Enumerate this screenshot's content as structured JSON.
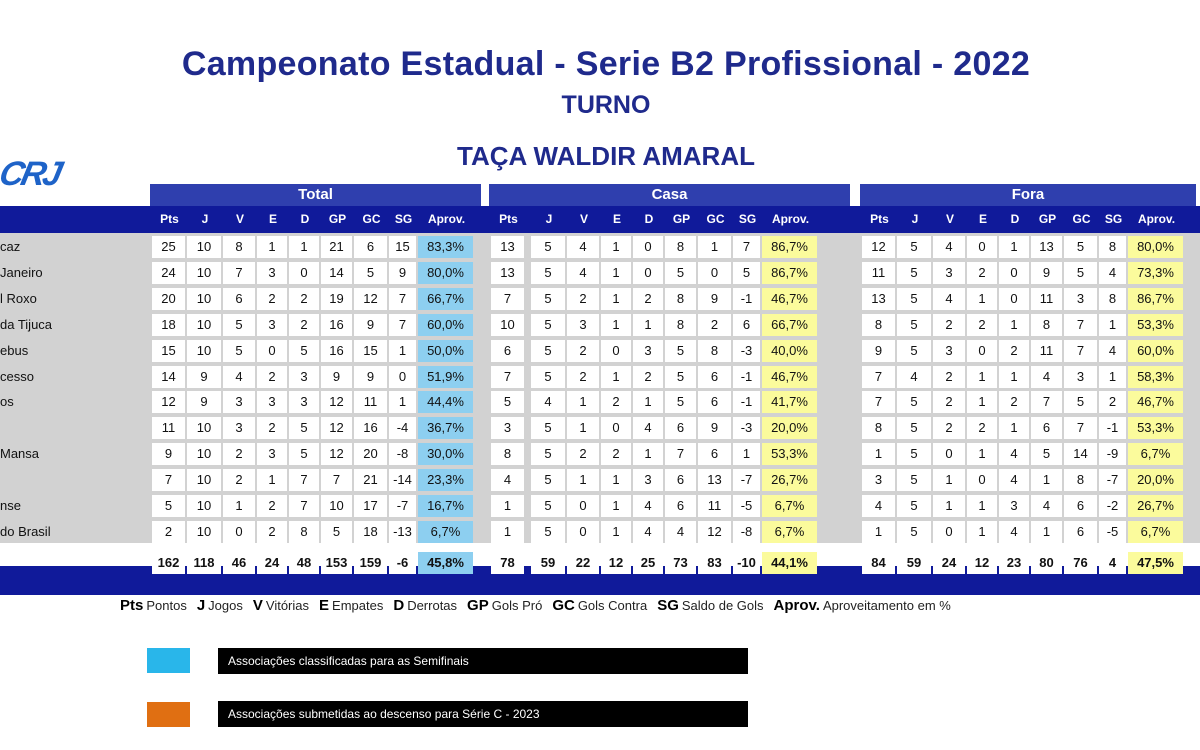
{
  "title": "Campeonato Estadual - Serie B2 Profissional - 2022",
  "subtitle": "TURNO",
  "cup": "TAÇA WALDIR AMARAL",
  "logo_text": "FERJ",
  "sections": [
    "Total",
    "Casa",
    "Fora"
  ],
  "columns": {
    "total": [
      "Pts",
      "J",
      "V",
      "E",
      "D",
      "GP",
      "GC",
      "SG",
      "Aprov."
    ],
    "casa": [
      "Pts",
      "J",
      "V",
      "E",
      "D",
      "GP",
      "GC",
      "SG",
      "Aprov."
    ],
    "fora": [
      "Pts",
      "J",
      "V",
      "E",
      "D",
      "GP",
      "GC",
      "SG",
      "Aprov."
    ]
  },
  "rows": [
    {
      "team": "caz",
      "total": [
        "25",
        "10",
        "8",
        "1",
        "1",
        "21",
        "6",
        "15",
        "83,3%"
      ],
      "casa": [
        "13",
        "5",
        "4",
        "1",
        "0",
        "8",
        "1",
        "7",
        "86,7%"
      ],
      "fora": [
        "12",
        "5",
        "4",
        "0",
        "1",
        "13",
        "5",
        "8",
        "80,0%"
      ]
    },
    {
      "team": "Janeiro",
      "total": [
        "24",
        "10",
        "7",
        "3",
        "0",
        "14",
        "5",
        "9",
        "80,0%"
      ],
      "casa": [
        "13",
        "5",
        "4",
        "1",
        "0",
        "5",
        "0",
        "5",
        "86,7%"
      ],
      "fora": [
        "11",
        "5",
        "3",
        "2",
        "0",
        "9",
        "5",
        "4",
        "73,3%"
      ]
    },
    {
      "team": "l Roxo",
      "total": [
        "20",
        "10",
        "6",
        "2",
        "2",
        "19",
        "12",
        "7",
        "66,7%"
      ],
      "casa": [
        "7",
        "5",
        "2",
        "1",
        "2",
        "8",
        "9",
        "-1",
        "46,7%"
      ],
      "fora": [
        "13",
        "5",
        "4",
        "1",
        "0",
        "11",
        "3",
        "8",
        "86,7%"
      ]
    },
    {
      "team": "da Tijuca",
      "total": [
        "18",
        "10",
        "5",
        "3",
        "2",
        "16",
        "9",
        "7",
        "60,0%"
      ],
      "casa": [
        "10",
        "5",
        "3",
        "1",
        "1",
        "8",
        "2",
        "6",
        "66,7%"
      ],
      "fora": [
        "8",
        "5",
        "2",
        "2",
        "1",
        "8",
        "7",
        "1",
        "53,3%"
      ]
    },
    {
      "team": "ebus",
      "total": [
        "15",
        "10",
        "5",
        "0",
        "5",
        "16",
        "15",
        "1",
        "50,0%"
      ],
      "casa": [
        "6",
        "5",
        "2",
        "0",
        "3",
        "5",
        "8",
        "-3",
        "40,0%"
      ],
      "fora": [
        "9",
        "5",
        "3",
        "0",
        "2",
        "11",
        "7",
        "4",
        "60,0%"
      ]
    },
    {
      "team": "cesso",
      "total": [
        "14",
        "9",
        "4",
        "2",
        "3",
        "9",
        "9",
        "0",
        "51,9%"
      ],
      "casa": [
        "7",
        "5",
        "2",
        "1",
        "2",
        "5",
        "6",
        "-1",
        "46,7%"
      ],
      "fora": [
        "7",
        "4",
        "2",
        "1",
        "1",
        "4",
        "3",
        "1",
        "58,3%"
      ]
    },
    {
      "team": "os",
      "total": [
        "12",
        "9",
        "3",
        "3",
        "3",
        "12",
        "11",
        "1",
        "44,4%"
      ],
      "casa": [
        "5",
        "4",
        "1",
        "2",
        "1",
        "5",
        "6",
        "-1",
        "41,7%"
      ],
      "fora": [
        "7",
        "5",
        "2",
        "1",
        "2",
        "7",
        "5",
        "2",
        "46,7%"
      ]
    },
    {
      "team": "",
      "total": [
        "11",
        "10",
        "3",
        "2",
        "5",
        "12",
        "16",
        "-4",
        "36,7%"
      ],
      "casa": [
        "3",
        "5",
        "1",
        "0",
        "4",
        "6",
        "9",
        "-3",
        "20,0%"
      ],
      "fora": [
        "8",
        "5",
        "2",
        "2",
        "1",
        "6",
        "7",
        "-1",
        "53,3%"
      ]
    },
    {
      "team": "Mansa",
      "total": [
        "9",
        "10",
        "2",
        "3",
        "5",
        "12",
        "20",
        "-8",
        "30,0%"
      ],
      "casa": [
        "8",
        "5",
        "2",
        "2",
        "1",
        "7",
        "6",
        "1",
        "53,3%"
      ],
      "fora": [
        "1",
        "5",
        "0",
        "1",
        "4",
        "5",
        "14",
        "-9",
        "6,7%"
      ]
    },
    {
      "team": "",
      "total": [
        "7",
        "10",
        "2",
        "1",
        "7",
        "7",
        "21",
        "-14",
        "23,3%"
      ],
      "casa": [
        "4",
        "5",
        "1",
        "1",
        "3",
        "6",
        "13",
        "-7",
        "26,7%"
      ],
      "fora": [
        "3",
        "5",
        "1",
        "0",
        "4",
        "1",
        "8",
        "-7",
        "20,0%"
      ]
    },
    {
      "team": "nse",
      "total": [
        "5",
        "10",
        "1",
        "2",
        "7",
        "10",
        "17",
        "-7",
        "16,7%"
      ],
      "casa": [
        "1",
        "5",
        "0",
        "1",
        "4",
        "6",
        "11",
        "-5",
        "6,7%"
      ],
      "fora": [
        "4",
        "5",
        "1",
        "1",
        "3",
        "4",
        "6",
        "-2",
        "26,7%"
      ]
    },
    {
      "team": "do Brasil",
      "total": [
        "2",
        "10",
        "0",
        "2",
        "8",
        "5",
        "18",
        "-13",
        "6,7%"
      ],
      "casa": [
        "1",
        "5",
        "0",
        "1",
        "4",
        "4",
        "12",
        "-8",
        "6,7%"
      ],
      "fora": [
        "1",
        "5",
        "0",
        "1",
        "4",
        "1",
        "6",
        "-5",
        "6,7%"
      ]
    }
  ],
  "totals": {
    "total": [
      "162",
      "118",
      "46",
      "24",
      "48",
      "153",
      "159",
      "-6",
      "45,8%"
    ],
    "casa": [
      "78",
      "59",
      "22",
      "12",
      "25",
      "73",
      "83",
      "-10",
      "44,1%"
    ],
    "fora": [
      "84",
      "59",
      "24",
      "12",
      "23",
      "80",
      "76",
      "4",
      "47,5%"
    ]
  },
  "legend": [
    {
      "abbr": "Pts",
      "text": "Pontos"
    },
    {
      "abbr": "J",
      "text": "Jogos"
    },
    {
      "abbr": "V",
      "text": "Vitórias"
    },
    {
      "abbr": "E",
      "text": "Empates"
    },
    {
      "abbr": "D",
      "text": "Derrotas"
    },
    {
      "abbr": "GP",
      "text": "Gols Pró"
    },
    {
      "abbr": "GC",
      "text": "Gols Contra"
    },
    {
      "abbr": "SG",
      "text": "Saldo de Gols"
    },
    {
      "abbr": "Aprov.",
      "text": "Aproveitamento em %"
    }
  ],
  "notes": [
    {
      "color": "#29b6ea",
      "text": "Associações classificadas para as Semifinais"
    },
    {
      "color": "#e06f12",
      "text": "Associações submetidas ao descenso para Série C - 2023"
    }
  ]
}
